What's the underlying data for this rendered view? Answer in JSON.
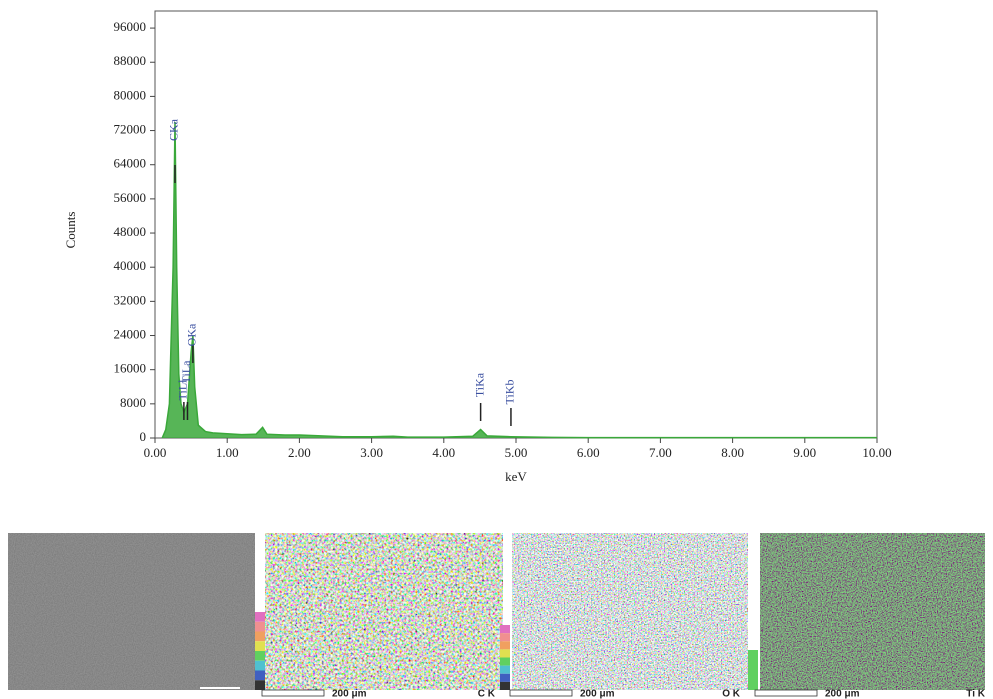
{
  "chart_data": {
    "type": "line",
    "x_label": "keV",
    "y_label": "Counts",
    "x": [
      0.1,
      0.15,
      0.2,
      0.25,
      0.277,
      0.3,
      0.33,
      0.36,
      0.4,
      0.45,
      0.5,
      0.525,
      0.55,
      0.6,
      0.7,
      0.8,
      1.0,
      1.2,
      1.4,
      1.49,
      1.55,
      1.8,
      2.0,
      2.3,
      2.6,
      3.0,
      3.3,
      3.5,
      4.0,
      4.4,
      4.51,
      4.6,
      4.93,
      5.5,
      6.0,
      7.0,
      8.0,
      9.0,
      10.0
    ],
    "series": [
      {
        "color": "#3aa83a",
        "values": [
          0,
          2000,
          8000,
          40000,
          74000,
          40000,
          15000,
          8000,
          6000,
          8000,
          20000,
          24000,
          12000,
          3000,
          1500,
          1200,
          1000,
          800,
          900,
          2500,
          900,
          700,
          700,
          500,
          300,
          300,
          400,
          200,
          200,
          400,
          2000,
          500,
          300,
          150,
          100,
          100,
          100,
          100,
          100
        ]
      }
    ],
    "peaks": [
      {
        "label": "CKa",
        "energy": 0.277
      },
      {
        "label": "TiLl",
        "energy": 0.4
      },
      {
        "label": "TiLa",
        "energy": 0.45
      },
      {
        "label": "OKa",
        "energy": 0.525
      },
      {
        "label": "TiKa",
        "energy": 4.51
      },
      {
        "label": "TiKb",
        "energy": 4.93
      }
    ],
    "xlim": [
      0,
      10
    ],
    "ylim": [
      0,
      100000
    ],
    "xticks": [
      {
        "value": 0,
        "label": "0.00"
      },
      {
        "value": 1,
        "label": "1.00"
      },
      {
        "value": 2,
        "label": "2.00"
      },
      {
        "value": 3,
        "label": "3.00"
      },
      {
        "value": 4,
        "label": "4.00"
      },
      {
        "value": 5,
        "label": "5.00"
      },
      {
        "value": 6,
        "label": "6.00"
      },
      {
        "value": 7,
        "label": "7.00"
      },
      {
        "value": 8,
        "label": "8.00"
      },
      {
        "value": 9,
        "label": "9.00"
      },
      {
        "value": 10,
        "label": "10.00"
      }
    ],
    "yticks": [
      0,
      8000,
      16000,
      24000,
      32000,
      40000,
      48000,
      56000,
      64000,
      72000,
      80000,
      88000,
      96000
    ]
  },
  "maps": [
    {
      "scale": "200 μm",
      "element": "C K"
    },
    {
      "scale": "200 μm",
      "element": "O K"
    },
    {
      "scale": "200 μm",
      "element": "Ti K"
    }
  ]
}
